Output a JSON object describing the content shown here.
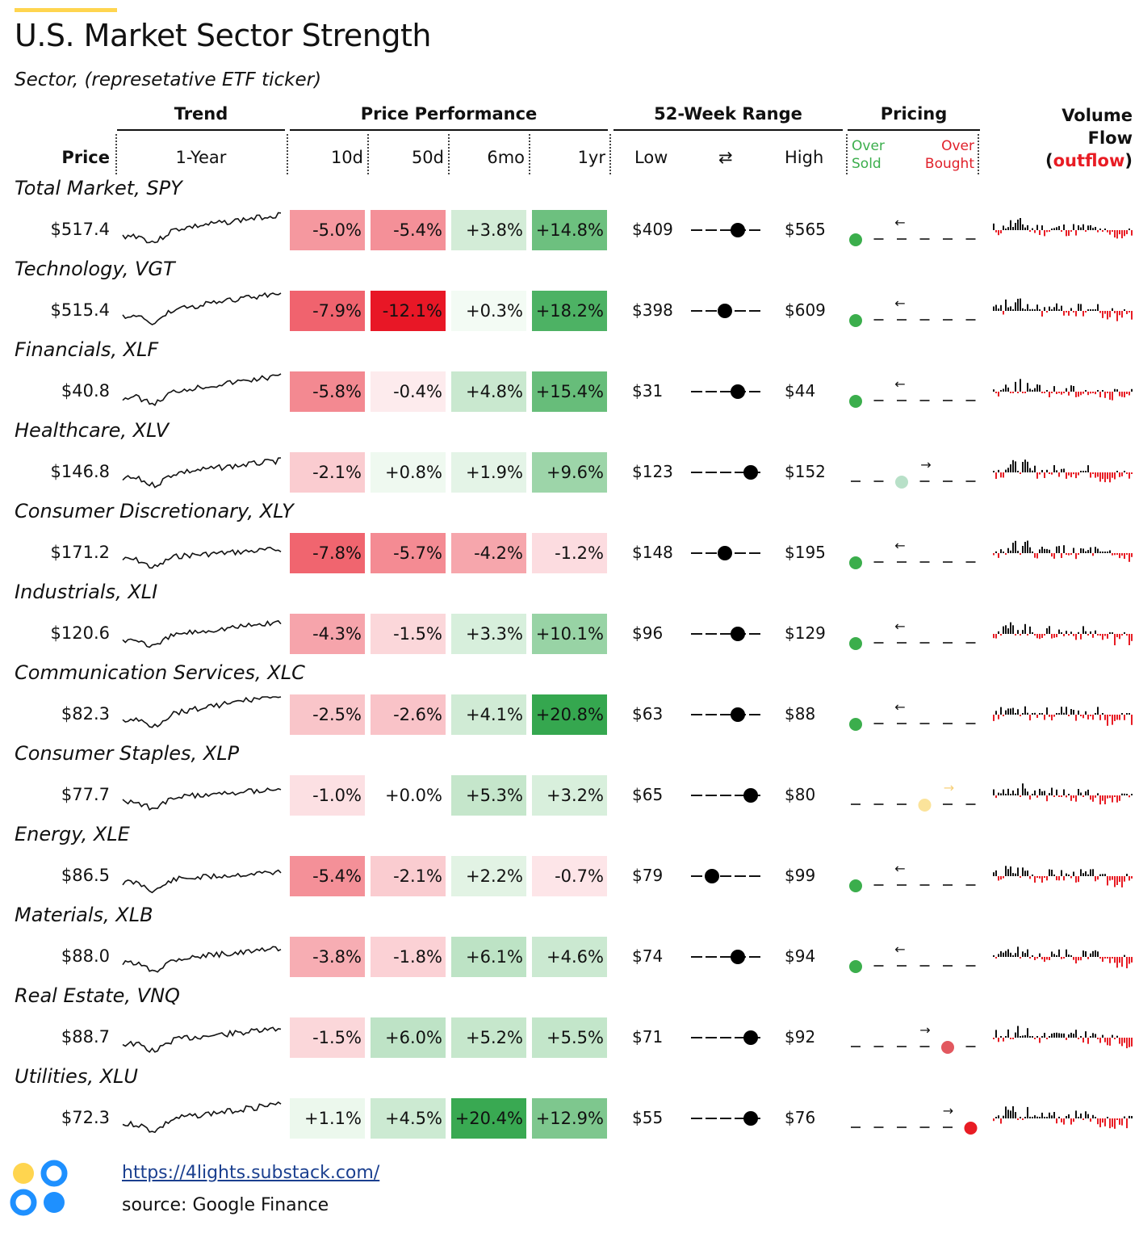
{
  "header": {
    "title": "U.S. Market Sector Strength",
    "subtitle": "Sector, (represetative ETF ticker)",
    "accent_color": "#FFD54F"
  },
  "columns": {
    "trend_group": "Trend",
    "perf_group": "Price Performance",
    "range_group": "52-Week Range",
    "pricing_group": "Pricing",
    "volume_line1": "Volume",
    "volume_line2": "Flow",
    "volume_paren_open": "(",
    "volume_outflow": "outflow",
    "volume_paren_close": ")",
    "price": "Price",
    "one_year": "1-Year",
    "d10": "10d",
    "d50": "50d",
    "m6": "6mo",
    "y1": "1yr",
    "low": "Low",
    "range_icon": "⇄",
    "oversold_1": "Over",
    "oversold_2": "Sold",
    "overbought_1": "Over",
    "overbought_2": "Bought"
  },
  "colors": {
    "oversold_text": "#3BAE4C",
    "overbought_text": "#E0202A",
    "inflow_bar": "#111111",
    "outflow_bar": "#E81C24"
  },
  "chart_data": {
    "type": "table",
    "rows": [
      {
        "sector": "Total Market, SPY",
        "price": "$517.4",
        "d10": "-5.0%",
        "d50": "-5.4%",
        "m6": "+3.8%",
        "y1": "+14.8%",
        "low": "$409",
        "high": "$565",
        "range_pos": 0.7,
        "pricing_pos": 0,
        "pricing_color": "#3BAE4C",
        "arrow": "←",
        "arrow_color": "#111111"
      },
      {
        "sector": "Technology, VGT",
        "price": "$515.4",
        "d10": "-7.9%",
        "d50": "-12.1%",
        "m6": "+0.3%",
        "y1": "+18.2%",
        "low": "$398",
        "high": "$609",
        "range_pos": 0.5,
        "pricing_pos": 0,
        "pricing_color": "#3BAE4C",
        "arrow": "←",
        "arrow_color": "#111111"
      },
      {
        "sector": "Financials, XLF",
        "price": "$40.8",
        "d10": "-5.8%",
        "d50": "-0.4%",
        "m6": "+4.8%",
        "y1": "+15.4%",
        "low": "$31",
        "high": "$44",
        "range_pos": 0.7,
        "pricing_pos": 0,
        "pricing_color": "#3BAE4C",
        "arrow": "←",
        "arrow_color": "#111111"
      },
      {
        "sector": "Healthcare, XLV",
        "price": "$146.8",
        "d10": "-2.1%",
        "d50": "+0.8%",
        "m6": "+1.9%",
        "y1": "+9.6%",
        "low": "$123",
        "high": "$152",
        "range_pos": 0.9,
        "pricing_pos": 2,
        "pricing_color": "#B8E0C8",
        "arrow": "→",
        "arrow_color": "#111111"
      },
      {
        "sector": "Consumer Discretionary, XLY",
        "price": "$171.2",
        "d10": "-7.8%",
        "d50": "-5.7%",
        "m6": "-4.2%",
        "y1": "-1.2%",
        "low": "$148",
        "high": "$195",
        "range_pos": 0.5,
        "pricing_pos": 0,
        "pricing_color": "#3BAE4C",
        "arrow": "←",
        "arrow_color": "#111111"
      },
      {
        "sector": "Industrials, XLI",
        "price": "$120.6",
        "d10": "-4.3%",
        "d50": "-1.5%",
        "m6": "+3.3%",
        "y1": "+10.1%",
        "low": "$96",
        "high": "$129",
        "range_pos": 0.7,
        "pricing_pos": 0,
        "pricing_color": "#3BAE4C",
        "arrow": "←",
        "arrow_color": "#111111"
      },
      {
        "sector": "Communication Services, XLC",
        "price": "$82.3",
        "d10": "-2.5%",
        "d50": "-2.6%",
        "m6": "+4.1%",
        "y1": "+20.8%",
        "low": "$63",
        "high": "$88",
        "range_pos": 0.7,
        "pricing_pos": 0,
        "pricing_color": "#3BAE4C",
        "arrow": "←",
        "arrow_color": "#111111"
      },
      {
        "sector": "Consumer Staples, XLP",
        "price": "$77.7",
        "d10": "-1.0%",
        "d50": "+0.0%",
        "m6": "+5.3%",
        "y1": "+3.2%",
        "low": "$65",
        "high": "$80",
        "range_pos": 0.9,
        "pricing_pos": 3,
        "pricing_color": "#FBE39A",
        "arrow": "→",
        "arrow_color": "#F7D07A"
      },
      {
        "sector": "Energy, XLE",
        "price": "$86.5",
        "d10": "-5.4%",
        "d50": "-2.1%",
        "m6": "+2.2%",
        "y1": "-0.7%",
        "low": "$79",
        "high": "$99",
        "range_pos": 0.3,
        "pricing_pos": 0,
        "pricing_color": "#3BAE4C",
        "arrow": "←",
        "arrow_color": "#111111"
      },
      {
        "sector": "Materials, XLB",
        "price": "$88.0",
        "d10": "-3.8%",
        "d50": "-1.8%",
        "m6": "+6.1%",
        "y1": "+4.6%",
        "low": "$74",
        "high": "$94",
        "range_pos": 0.7,
        "pricing_pos": 0,
        "pricing_color": "#3BAE4C",
        "arrow": "←",
        "arrow_color": "#111111"
      },
      {
        "sector": "Real Estate, VNQ",
        "price": "$88.7",
        "d10": "-1.5%",
        "d50": "+6.0%",
        "m6": "+5.2%",
        "y1": "+5.5%",
        "low": "$71",
        "high": "$92",
        "range_pos": 0.9,
        "pricing_pos": 4,
        "pricing_color": "#E2585F",
        "arrow": "→",
        "arrow_color": "#111111"
      },
      {
        "sector": "Utilities, XLU",
        "price": "$72.3",
        "d10": "+1.1%",
        "d50": "+4.5%",
        "m6": "+20.4%",
        "y1": "+12.9%",
        "low": "$55",
        "high": "$76",
        "range_pos": 0.9,
        "pricing_pos": 5,
        "pricing_color": "#E81C24",
        "arrow": "→",
        "arrow_color": "#111111"
      }
    ]
  },
  "footer": {
    "link": "https://4lights.substack.com/",
    "source": "source: Google Finance"
  }
}
